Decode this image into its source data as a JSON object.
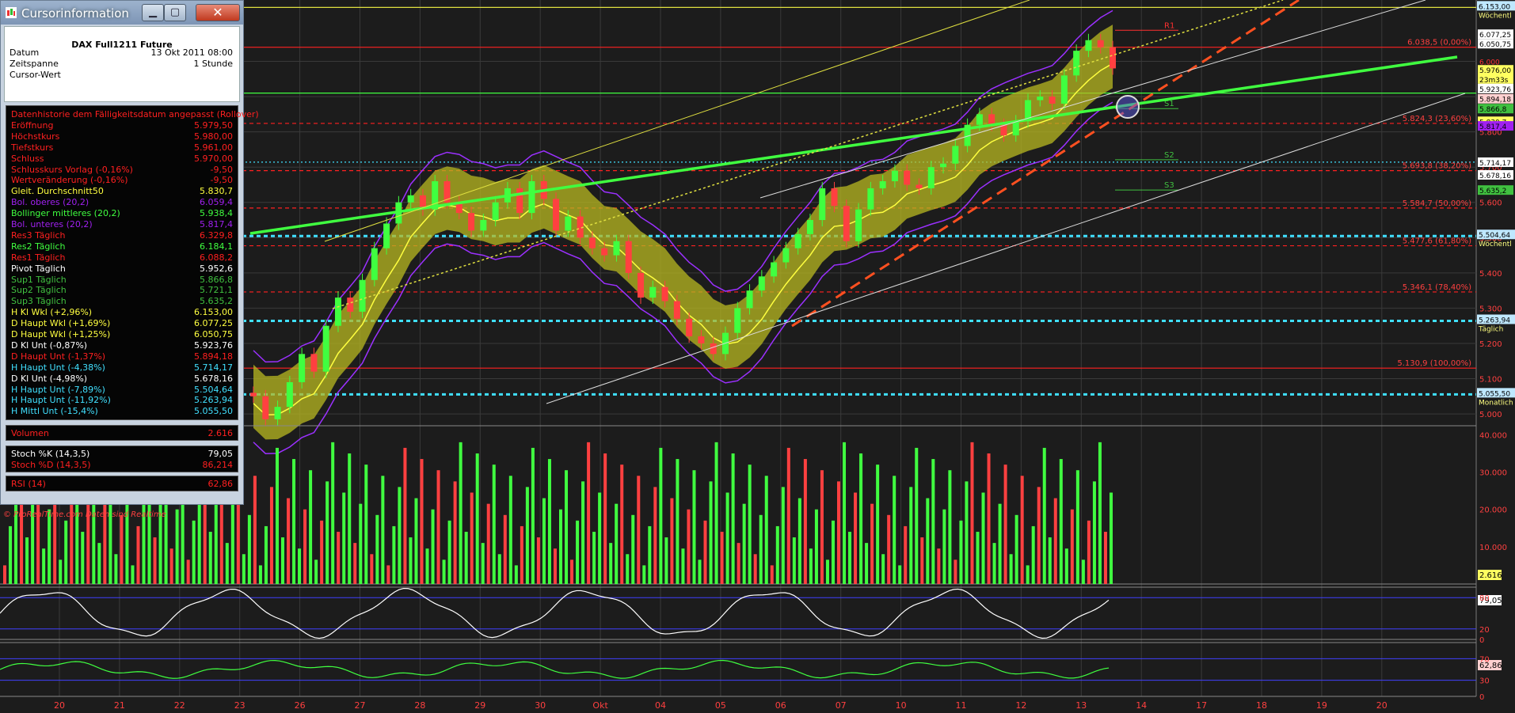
{
  "window": {
    "title": "Cursorinformation",
    "instrument": "DAX Full1211 Future",
    "fields": [
      {
        "k": "Datum",
        "v": "13 Okt 2011 08:00"
      },
      {
        "k": "Zeitspanne",
        "v": "1 Stunde"
      },
      {
        "k": "Cursor-Wert",
        "v": ""
      }
    ],
    "rows": [
      {
        "k": "Datenhistorie dem Fälligkeitsdatum angepasst (Rollover)",
        "v": "",
        "c": "#ff2020"
      },
      {
        "k": "Eröffnung",
        "v": "5.979,50",
        "c": "#ff2020"
      },
      {
        "k": "Höchstkurs",
        "v": "5.980,00",
        "c": "#ff2020"
      },
      {
        "k": "Tiefstkurs",
        "v": "5.961,00",
        "c": "#ff2020"
      },
      {
        "k": "Schluss",
        "v": "5.970,00",
        "c": "#ff2020"
      },
      {
        "k": "Schlusskurs Vorlag (-0,16%)",
        "v": "-9,50",
        "c": "#ff2020"
      },
      {
        "k": "Wertveränderung (-0,16%)",
        "v": "-9,50",
        "c": "#ff2020"
      },
      {
        "k": "Gleit. Durchschnitt50",
        "v": "5.830,7",
        "c": "#ffff40"
      },
      {
        "k": "Bol. oberes (20,2)",
        "v": "6.059,4",
        "c": "#a020f0"
      },
      {
        "k": "Bollinger mittleres (20,2)",
        "v": "5.938,4",
        "c": "#40ff40"
      },
      {
        "k": "Bol. unteres (20,2)",
        "v": "5.817,4",
        "c": "#a020f0"
      },
      {
        "k": "Res3 Täglich",
        "v": "6.329,8",
        "c": "#ff2020"
      },
      {
        "k": "Res2 Täglich",
        "v": "6.184,1",
        "c": "#40ff40"
      },
      {
        "k": "Res1 Täglich",
        "v": "6.088,2",
        "c": "#ff2020"
      },
      {
        "k": "Pivot Täglich",
        "v": "5.952,6",
        "c": "#ffffff"
      },
      {
        "k": "Sup1 Täglich",
        "v": "5.866,8",
        "c": "#40c040"
      },
      {
        "k": "Sup2 Täglich",
        "v": "5.721,1",
        "c": "#40c040"
      },
      {
        "k": "Sup3 Täglich",
        "v": "5.635,2",
        "c": "#40c040"
      },
      {
        "k": "H Kl Wkl (+2,96%)",
        "v": "6.153,00",
        "c": "#ffff40"
      },
      {
        "k": "D Haupt Wkl (+1,69%)",
        "v": "6.077,25",
        "c": "#ffff40"
      },
      {
        "k": "D Haupt Wkl (+1,25%)",
        "v": "6.050,75",
        "c": "#ffff40"
      },
      {
        "k": "D Kl Unt (-0,87%)",
        "v": "5.923,76",
        "c": "#ffffff"
      },
      {
        "k": "D Haupt Unt (-1,37%)",
        "v": "5.894,18",
        "c": "#ff2020"
      },
      {
        "k": "H Haupt Unt (-4,38%)",
        "v": "5.714,17",
        "c": "#40e0ff"
      },
      {
        "k": "D Kl Unt (-4,98%)",
        "v": "5.678,16",
        "c": "#ffffff"
      },
      {
        "k": "H Haupt Unt (-7,89%)",
        "v": "5.504,64",
        "c": "#40e0ff"
      },
      {
        "k": "H Haupt Unt (-11,92%)",
        "v": "5.263,94",
        "c": "#40e0ff"
      },
      {
        "k": "H Mittl Unt (-15,4%)",
        "v": "5.055,50",
        "c": "#40e0ff"
      }
    ],
    "volume": {
      "k": "Volumen",
      "v": "2.616",
      "c": "#ff2020"
    },
    "stoch": [
      {
        "k": "Stoch %K (14,3,5)",
        "v": "79,05",
        "c": "#ffffff"
      },
      {
        "k": "Stoch %D (14,3,5)",
        "v": "86,214",
        "c": "#ff2020"
      }
    ],
    "rsi": {
      "k": "RSI (14)",
      "v": "62,86",
      "c": "#ff2020"
    },
    "footer": "© ProRealTime.com   Daten sind Realtime"
  },
  "chart_data": {
    "type": "candlestick",
    "instrument": "DAX Full1211 Future",
    "timeframe": "1 Stunde",
    "price_ylim": [
      4980,
      6165
    ],
    "price_ticks": [
      "6.000",
      "5.900",
      "5.800",
      "5.700",
      "5.600",
      "5.500",
      "5.400",
      "5.300",
      "5.200",
      "5.100",
      "5.000"
    ],
    "x_labels": [
      "20",
      "21",
      "22",
      "23",
      "26",
      "27",
      "28",
      "29",
      "30",
      "Okt",
      "04",
      "05",
      "06",
      "07",
      "10",
      "11",
      "12",
      "13",
      "14",
      "17",
      "18",
      "19",
      "20"
    ],
    "close_path": [
      5050,
      4985,
      5020,
      5090,
      5170,
      5120,
      5250,
      5330,
      5290,
      5380,
      5470,
      5540,
      5600,
      5620,
      5580,
      5660,
      5600,
      5570,
      5520,
      5550,
      5600,
      5640,
      5570,
      5660,
      5610,
      5520,
      5560,
      5500,
      5470,
      5450,
      5490,
      5400,
      5330,
      5360,
      5320,
      5270,
      5220,
      5200,
      5170,
      5230,
      5300,
      5350,
      5390,
      5430,
      5470,
      5510,
      5550,
      5640,
      5590,
      5490,
      5580,
      5640,
      5660,
      5690,
      5650,
      5640,
      5700,
      5710,
      5760,
      5820,
      5850,
      5820,
      5790,
      5830,
      5890,
      5900,
      5880,
      5960,
      6030,
      6060,
      6040,
      5980
    ],
    "hlines": [
      {
        "value": 6153,
        "color": "#e0e040",
        "style": "solid",
        "label": "6.153,00",
        "sub": "Wöchentl"
      },
      {
        "value": 6040,
        "color": "#ff2020",
        "style": "solid",
        "label": "6.038,5 (0,00%)"
      },
      {
        "value": 5910,
        "color": "#40ff40",
        "style": "solid"
      },
      {
        "value": 5824,
        "color": "#ff2020",
        "style": "dashed",
        "label": "5.824,3 (23,60%)"
      },
      {
        "value": 5714.17,
        "color": "#40e0ff",
        "style": "dotted"
      },
      {
        "value": 5690,
        "color": "#ff2020",
        "style": "dashed",
        "label": "5.693,8 (38,20%)"
      },
      {
        "value": 5584,
        "color": "#ff2020",
        "style": "dashed",
        "label": "5.584,7 (50,00%)"
      },
      {
        "value": 5504.64,
        "color": "#40e0ff",
        "style": "dashed",
        "label": "5.504,64",
        "sub": "Wöchentl"
      },
      {
        "value": 5477,
        "color": "#ff2020",
        "style": "dashed",
        "label": "5.477,6 (61,80%)"
      },
      {
        "value": 5346,
        "color": "#ff2020",
        "style": "dashed",
        "label": "5.346,1 (78,40%)"
      },
      {
        "value": 5263.94,
        "color": "#40e0ff",
        "style": "dashed",
        "label": "5.263,94",
        "sub": "Täglich"
      },
      {
        "value": 5130,
        "color": "#ff2020",
        "style": "solid",
        "label": "5.130,9 (100,00%)"
      },
      {
        "value": 5055.5,
        "color": "#40e0ff",
        "style": "dashed",
        "label": "5.055,50",
        "sub": "Monatlich"
      }
    ],
    "pivots": [
      {
        "label": "R1",
        "value": 6088
      },
      {
        "label": "S1",
        "value": 5866
      },
      {
        "label": "S2",
        "value": 5721
      },
      {
        "label": "S3",
        "value": 5635
      }
    ],
    "price_flags": [
      {
        "label": "6.077,25",
        "value": 6077,
        "bg": "#ffffff",
        "fg": "#000"
      },
      {
        "label": "6.050,75",
        "value": 6050,
        "bg": "#ffffff",
        "fg": "#000"
      },
      {
        "label": "6.000",
        "value": 6000,
        "bg": "#1c1c1c",
        "fg": "#ff3030"
      },
      {
        "label": "5.976,00",
        "value": 5976,
        "bg": "#ffff60",
        "fg": "#000"
      },
      {
        "label": "23m33s",
        "value": 5950,
        "bg": "#ffff60",
        "fg": "#000"
      },
      {
        "label": "5.923,76",
        "value": 5923,
        "bg": "#ffffff",
        "fg": "#000"
      },
      {
        "label": "5.894,18",
        "value": 5894,
        "bg": "#ffd0d0",
        "fg": "#000"
      },
      {
        "label": "5.866,8",
        "value": 5866,
        "bg": "#40c040",
        "fg": "#000"
      },
      {
        "label": "5.830,7",
        "value": 5830,
        "bg": "#ffff60",
        "fg": "#000"
      },
      {
        "label": "5.817,4",
        "value": 5817,
        "bg": "#a020f0",
        "fg": "#000"
      },
      {
        "label": "5.714,17",
        "value": 5714,
        "bg": "#ffffff",
        "fg": "#000"
      },
      {
        "label": "5.678,16",
        "value": 5678,
        "bg": "#ffffff",
        "fg": "#000"
      },
      {
        "label": "5.635,2",
        "value": 5635,
        "bg": "#40c040",
        "fg": "#000"
      }
    ],
    "volume": {
      "ticks": [
        "40.000",
        "30.000",
        "20.000",
        "10.000"
      ],
      "last": "2.616",
      "ylim": [
        0,
        42000
      ]
    },
    "stoch": {
      "last": "79,05",
      "levels": [
        80,
        20
      ],
      "ylim": [
        0,
        100
      ]
    },
    "rsi": {
      "last": "62,86",
      "levels": [
        70,
        30
      ],
      "ylim": [
        0,
        100
      ]
    }
  },
  "colors": {
    "bg": "#1c1c1c",
    "grid": "#3a3a3a",
    "up": "#40ff40",
    "down": "#ff4040"
  }
}
